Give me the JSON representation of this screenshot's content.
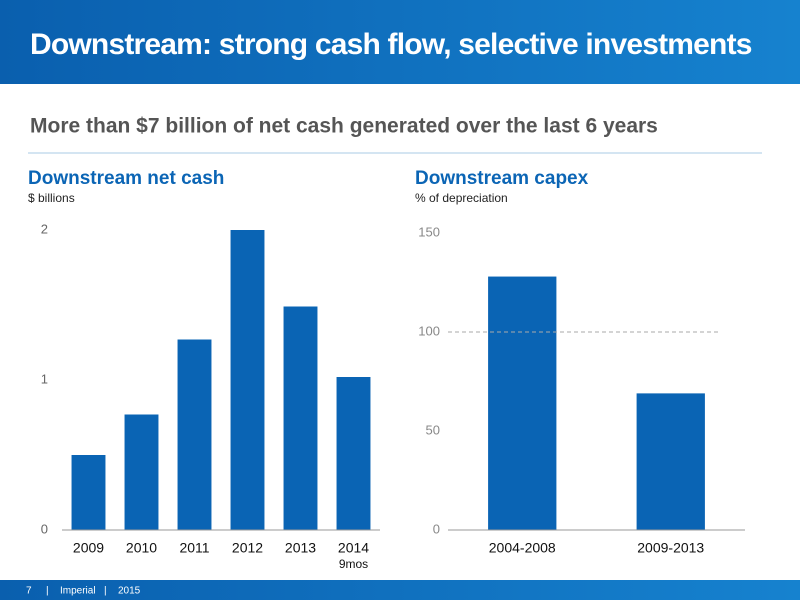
{
  "header": {
    "title": "Downstream: strong cash flow, selective investments",
    "subtitle": "More than $7 billion of net cash generated over the last 6 years"
  },
  "chart_data": [
    {
      "type": "bar",
      "title": "Downstream net cash",
      "subtitle": "$ billions",
      "categories": [
        "2009",
        "2010",
        "2011",
        "2012",
        "2013",
        "2014"
      ],
      "values": [
        0.5,
        0.77,
        1.27,
        2.0,
        1.49,
        1.02
      ],
      "color": "#0a64b4",
      "annotations": [
        "9mos"
      ],
      "ylim": [
        0,
        2
      ],
      "yticks": [
        0,
        1,
        2
      ]
    },
    {
      "type": "bar",
      "title": "Downstream capex",
      "subtitle": "% of depreciation",
      "categories": [
        "2004-2008",
        "2009-2013"
      ],
      "values": [
        128,
        69
      ],
      "color": "#0a64b4",
      "reference_line": 100,
      "ylim": [
        0,
        150
      ],
      "yticks": [
        0,
        50,
        100,
        150
      ]
    }
  ],
  "footer": {
    "page": "7",
    "separator": "|",
    "company": "Imperial",
    "year": "2015"
  }
}
